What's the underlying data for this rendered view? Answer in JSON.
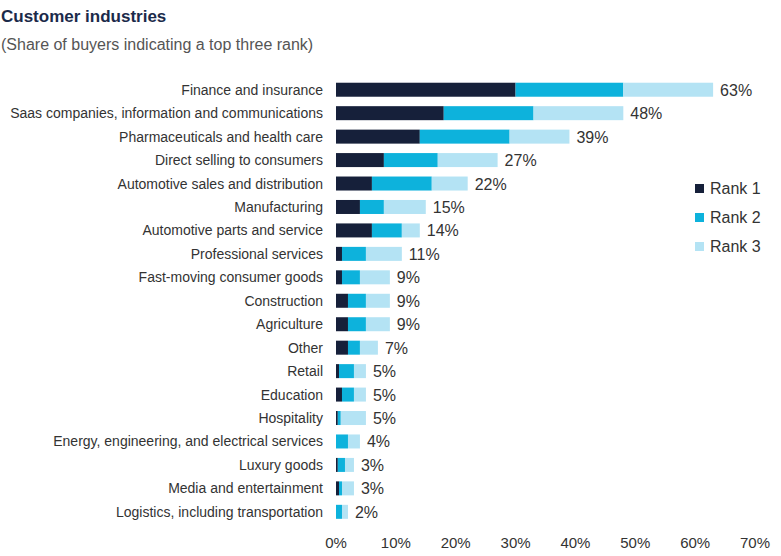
{
  "chart_data": {
    "type": "bar",
    "title": "Customer industries",
    "subtitle": "(Share of buyers indicating a top three rank)",
    "orientation": "horizontal",
    "stacked": true,
    "grid": false,
    "legend": "right",
    "categories": [
      "Finance and insurance",
      "Saas companies, information and communications",
      "Pharmaceuticals and health care",
      "Direct selling to consumers",
      "Automotive sales and distribution",
      "Manufacturing",
      "Automotive parts and service",
      "Professional services",
      "Fast-moving consumer goods",
      "Construction",
      "Agriculture",
      "Other",
      "Retail",
      "Education",
      "Hospitality",
      "Energy, engineering, and electrical services",
      "Luxury goods",
      "Media and entertainment",
      "Logistics, including transportation"
    ],
    "series": [
      {
        "name": "Rank 1",
        "color": "#16203a",
        "values": [
          30,
          18,
          14,
          8,
          6,
          4,
          6,
          1,
          1,
          2,
          2,
          2,
          0.5,
          1,
          0.3,
          0,
          0.3,
          0.5,
          0
        ]
      },
      {
        "name": "Rank 2",
        "color": "#0db2dc",
        "values": [
          18,
          15,
          15,
          9,
          10,
          4,
          5,
          4,
          3,
          3,
          3,
          2,
          2.5,
          2,
          0.5,
          2,
          1.2,
          0.5,
          1
        ]
      },
      {
        "name": "Rank 3",
        "color": "#b4e3f4",
        "values": [
          15,
          15,
          10,
          10,
          6,
          7,
          3,
          6,
          5,
          4,
          4,
          3,
          2,
          2,
          4.2,
          2,
          1.5,
          2,
          1
        ]
      }
    ],
    "totals": [
      63,
      48,
      39,
      27,
      22,
      15,
      14,
      11,
      9,
      9,
      9,
      7,
      5,
      5,
      5,
      4,
      3,
      3,
      2
    ],
    "total_labels": [
      "63%",
      "48%",
      "39%",
      "27%",
      "22%",
      "15%",
      "14%",
      "11%",
      "9%",
      "9%",
      "9%",
      "7%",
      "5%",
      "5%",
      "5%",
      "4%",
      "3%",
      "3%",
      "2%"
    ],
    "xlim": [
      0,
      70
    ],
    "xticks": [
      {
        "value": 0,
        "label": "0%"
      },
      {
        "value": 10,
        "label": "10%"
      },
      {
        "value": 20,
        "label": "20%"
      },
      {
        "value": 30,
        "label": "30%"
      },
      {
        "value": 40,
        "label": "40%"
      },
      {
        "value": 50,
        "label": "50%"
      },
      {
        "value": 60,
        "label": "60%"
      },
      {
        "value": 70,
        "label": "70%"
      }
    ]
  }
}
